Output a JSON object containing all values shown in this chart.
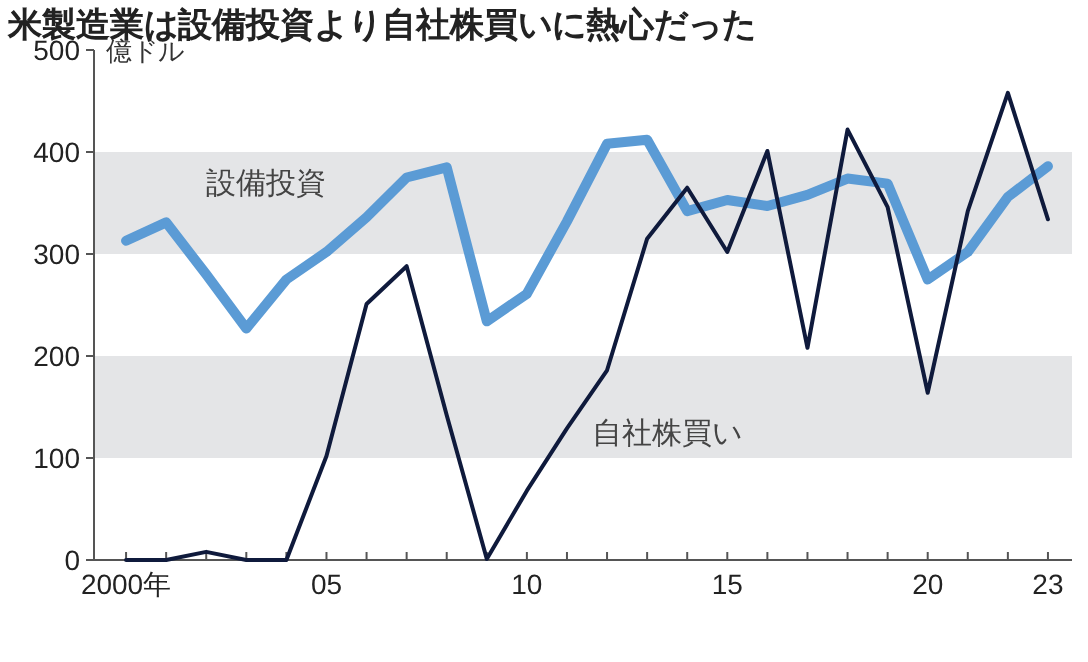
{
  "chart_data": {
    "type": "line",
    "title": "米製造業は設備投資より自社株買いに熱心だった",
    "ylabel": "億ドル",
    "x": [
      2000,
      2001,
      2002,
      2003,
      2004,
      2005,
      2006,
      2007,
      2008,
      2009,
      2010,
      2011,
      2012,
      2013,
      2014,
      2015,
      2016,
      2017,
      2018,
      2019,
      2020,
      2021,
      2022,
      2023
    ],
    "series": [
      {
        "name": "設備投資",
        "color": "#5b9bd5",
        "values": [
          313,
          331,
          280,
          227,
          275,
          302,
          336,
          375,
          385,
          234,
          261,
          332,
          408,
          412,
          342,
          353,
          347,
          358,
          374,
          369,
          275,
          302,
          356,
          386
        ]
      },
      {
        "name": "自社株買い",
        "color": "#0f1a3c",
        "values": [
          0,
          0,
          8,
          0,
          0,
          102,
          251,
          288,
          142,
          1,
          68,
          129,
          186,
          315,
          365,
          302,
          401,
          208,
          422,
          346,
          164,
          342,
          458,
          334
        ]
      }
    ],
    "xlim": [
      1999.2,
      2023.6
    ],
    "ylim": [
      0,
      500
    ],
    "yticks": [
      0,
      100,
      200,
      300,
      400,
      500
    ],
    "xticks": [
      {
        "value": 2000,
        "label": "2000年"
      },
      {
        "value": 2001,
        "label": null
      },
      {
        "value": 2002,
        "label": null
      },
      {
        "value": 2003,
        "label": null
      },
      {
        "value": 2004,
        "label": null
      },
      {
        "value": 2005,
        "label": "05"
      },
      {
        "value": 2006,
        "label": null
      },
      {
        "value": 2007,
        "label": null
      },
      {
        "value": 2008,
        "label": null
      },
      {
        "value": 2009,
        "label": null
      },
      {
        "value": 2010,
        "label": "10"
      },
      {
        "value": 2011,
        "label": null
      },
      {
        "value": 2012,
        "label": null
      },
      {
        "value": 2013,
        "label": null
      },
      {
        "value": 2014,
        "label": null
      },
      {
        "value": 2015,
        "label": "15"
      },
      {
        "value": 2016,
        "label": null
      },
      {
        "value": 2017,
        "label": null
      },
      {
        "value": 2018,
        "label": null
      },
      {
        "value": 2019,
        "label": null
      },
      {
        "value": 2020,
        "label": "20"
      },
      {
        "value": 2021,
        "label": null
      },
      {
        "value": 2022,
        "label": null
      },
      {
        "value": 2023,
        "label": "23"
      }
    ],
    "bands": [
      {
        "axis": "y",
        "from": 100,
        "to": 200,
        "color": "#e4e5e7"
      },
      {
        "axis": "y",
        "from": 300,
        "to": 400,
        "color": "#e4e5e7"
      }
    ],
    "grid": false
  }
}
